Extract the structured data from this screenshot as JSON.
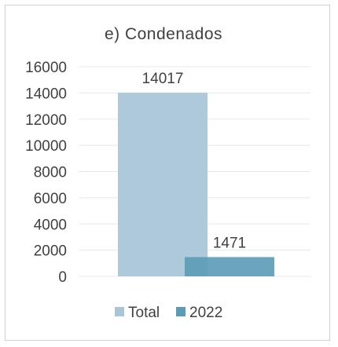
{
  "chart_data": {
    "type": "bar",
    "title": "e) Condenados",
    "categories": [
      ""
    ],
    "series": [
      {
        "name": "Total",
        "values": [
          14017
        ],
        "color": "#a9c6d8"
      },
      {
        "name": "2022",
        "values": [
          1471
        ],
        "color": "#5b9bb6"
      }
    ],
    "ylim": [
      0,
      16000
    ],
    "yticks": [
      0,
      2000,
      4000,
      6000,
      8000,
      10000,
      12000,
      14000,
      16000
    ],
    "grid": true,
    "legend_position": "bottom",
    "data_labels": [
      "14017",
      "1471"
    ]
  }
}
